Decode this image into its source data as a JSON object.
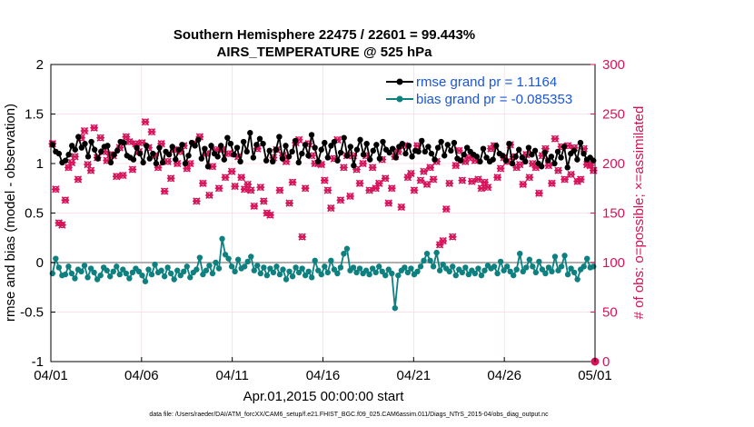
{
  "chart_data": {
    "type": "line",
    "title": "Southern Hemisphere 22475 / 22601 = 99.443%",
    "subtitle": "AIRS_TEMPERATURE @ 525 hPa",
    "xlabel": "Apr.01,2015 00:00:00 start",
    "ylabel_left": "rmse and bias (model - observation)",
    "ylabel_right": "# of obs: o=possible; ×=assimilated",
    "footnote": "data file: /Users/raeder/DAI/ATM_forcXX/CAM6_setup/f.e21.FHIST_BGC.f09_025.CAM6assim.011/Diags_NTrS_2015-04/obs_diag_output.nc",
    "ylim_left": [
      -1,
      2
    ],
    "ylim_right": [
      0,
      300
    ],
    "xlim": [
      0,
      30
    ],
    "y_ticks_left": [
      "-1",
      "-0.5",
      "0",
      "0.5",
      "1",
      "1.5",
      "2"
    ],
    "y_ticks_right": [
      "0",
      "50",
      "100",
      "150",
      "200",
      "250",
      "300"
    ],
    "x_ticks": [
      {
        "x": 0,
        "label": "04/01"
      },
      {
        "x": 5,
        "label": "04/06"
      },
      {
        "x": 10,
        "label": "04/11"
      },
      {
        "x": 15,
        "label": "04/16"
      },
      {
        "x": 20,
        "label": "04/21"
      },
      {
        "x": 25,
        "label": "04/26"
      },
      {
        "x": 30,
        "label": "05/01"
      }
    ],
    "grid": true,
    "legend_position": "top-right",
    "colors": {
      "rmse": "#000000",
      "bias": "#0e8080",
      "obs": "#d6135a",
      "zero_line": "#b0b0b0",
      "grid": "#ffd6e4",
      "legend_text": "#1a56db"
    },
    "series": [
      {
        "name": "rmse grand pr = 1.1164",
        "axis": "left",
        "marker": "circle",
        "values": [
          1.19,
          1.12,
          1.1,
          1.01,
          1.03,
          1.09,
          1.18,
          1.14,
          1.27,
          1.16,
          1.2,
          1.07,
          1.22,
          1.14,
          1.05,
          1.12,
          1.17,
          1.18,
          1.01,
          1.09,
          1.13,
          1.22,
          1.21,
          1.08,
          1.06,
          1.04,
          1.16,
          1.1,
          1.01,
          1.18,
          1.05,
          1.1,
          1.0,
          1.16,
          1.01,
          1.12,
          1.09,
          1.17,
          1.04,
          1.14,
          1.19,
          1.0,
          1.08,
          1.21,
          1.18,
          1.24,
          1.05,
          1.15,
          0.97,
          1.18,
          1.1,
          1.07,
          1.18,
          1.04,
          1.26,
          1.2,
          1.09,
          1.16,
          1.02,
          1.22,
          1.12,
          1.31,
          1.06,
          1.19,
          1.25,
          1.2,
          1.03,
          1.13,
          1.02,
          1.14,
          1.27,
          1.05,
          1.18,
          1.07,
          1.12,
          1.23,
          1.01,
          1.1,
          1.19,
          1.08,
          1.29,
          1.16,
          1.02,
          1.14,
          1.21,
          1.06,
          1.18,
          1.22,
          1.03,
          1.11,
          1.26,
          1.08,
          1.17,
          0.98,
          1.14,
          1.24,
          1.09,
          1.2,
          1.04,
          1.13,
          1.19,
          1.05,
          1.22,
          1.14,
          1.11,
          1.15,
          1.06,
          1.17,
          1.2,
          1.1,
          1.18,
          1.07,
          1.13,
          1.12,
          1.23,
          1.12,
          1.17,
          1.1,
          1.04,
          1.16,
          1.22,
          1.08,
          1.19,
          1.13,
          1.21,
          1.05,
          1.03,
          1.09,
          1.16,
          1.12,
          1.09,
          1.07,
          1.02,
          1.15,
          1.06,
          1.02,
          1.04,
          1.18,
          1.1,
          1.08,
          1.03,
          1.2,
          1.0,
          1.07,
          1.14,
          1.06,
          1.02,
          1.16,
          1.09,
          1.13,
          1.0,
          0.97,
          1.11,
          1.03,
          1.07,
          1.0,
          1.12,
          1.06,
          1.17,
          0.96,
          1.1,
          1.13,
          1.04,
          1.21,
          1.1,
          1.04,
          1.06,
          1.03
        ]
      },
      {
        "name": "bias grand pr = -0.085353",
        "axis": "left",
        "marker": "circle",
        "values": [
          -0.11,
          0.04,
          -0.05,
          -0.13,
          -0.12,
          -0.04,
          -0.11,
          -0.16,
          -0.07,
          -0.09,
          -0.03,
          -0.15,
          -0.06,
          -0.1,
          -0.17,
          -0.13,
          -0.05,
          -0.08,
          -0.14,
          -0.09,
          -0.04,
          -0.12,
          -0.07,
          -0.11,
          -0.16,
          -0.1,
          -0.06,
          -0.09,
          -0.13,
          -0.19,
          -0.07,
          -0.12,
          -0.02,
          -0.1,
          -0.08,
          -0.14,
          -0.05,
          -0.11,
          -0.17,
          -0.08,
          -0.13,
          -0.09,
          -0.04,
          -0.15,
          -0.1,
          -0.07,
          0.05,
          -0.12,
          -0.08,
          -0.03,
          -0.11,
          0.0,
          -0.06,
          0.24,
          0.08,
          0.04,
          -0.04,
          -0.09,
          0.03,
          -0.06,
          -0.04,
          0.01,
          0.06,
          -0.08,
          -0.03,
          -0.11,
          -0.05,
          -0.13,
          -0.06,
          -0.1,
          -0.04,
          -0.12,
          -0.07,
          -0.17,
          -0.09,
          -0.14,
          -0.05,
          -0.1,
          -0.06,
          -0.13,
          -0.09,
          -0.15,
          0.02,
          -0.08,
          -0.12,
          -0.04,
          -0.1,
          0.02,
          -0.07,
          -0.11,
          -0.05,
          0.09,
          0.14,
          -0.08,
          -0.05,
          -0.1,
          -0.06,
          -0.11,
          -0.08,
          -0.12,
          -0.06,
          -0.1,
          -0.04,
          -0.09,
          -0.13,
          -0.07,
          -0.11,
          -0.46,
          -0.13,
          -0.08,
          -0.05,
          -0.1,
          -0.06,
          -0.12,
          -0.09,
          -0.04,
          0.02,
          0.09,
          0.02,
          -0.04,
          0.1,
          -0.08,
          -0.02,
          -0.06,
          -0.09,
          -0.04,
          -0.13,
          -0.07,
          -0.1,
          -0.05,
          -0.12,
          -0.08,
          -0.11,
          -0.06,
          -0.13,
          -0.08,
          -0.03,
          -0.06,
          -0.04,
          -0.11,
          0.01,
          -0.08,
          -0.04,
          -0.09,
          -0.13,
          -0.07,
          0.09,
          -0.09,
          -0.05,
          0.03,
          -0.04,
          -0.1,
          0.01,
          -0.07,
          -0.11,
          -0.05,
          -0.09,
          0.06,
          -0.08,
          -0.04,
          0.07,
          -0.12,
          -0.06,
          -0.1,
          -0.17,
          -0.07,
          -0.04,
          0.04,
          -0.05,
          -0.04
        ]
      },
      {
        "name": "obs",
        "axis": "right",
        "marker": "cross",
        "values": [
          220,
          174,
          140,
          138,
          163,
          196,
          201,
          207,
          184,
          226,
          233,
          199,
          193,
          236,
          206,
          226,
          212,
          203,
          209,
          208,
          187,
          216,
          188,
          227,
          222,
          194,
          220,
          212,
          221,
          242,
          216,
          232,
          208,
          196,
          220,
          172,
          202,
          185,
          214,
          200,
          212,
          218,
          195,
          200,
          220,
          162,
          227,
          180,
          210,
          168,
          197,
          214,
          175,
          214,
          186,
          210,
          192,
          177,
          207,
          186,
          174,
          179,
          173,
          157,
          215,
          176,
          162,
          150,
          148,
          206,
          214,
          173,
          208,
          202,
          160,
          181,
          221,
          224,
          126,
          175,
          220,
          208,
          200,
          200,
          199,
          183,
          173,
          155,
          205,
          224,
          163,
          196,
          208,
          167,
          208,
          194,
          180,
          200,
          208,
          173,
          196,
          175,
          180,
          204,
          185,
          160,
          175,
          207,
          212,
          156,
          218,
          186,
          190,
          173,
          218,
          183,
          192,
          179,
          196,
          184,
          202,
          118,
          122,
          154,
          180,
          126,
          198,
          213,
          183,
          202,
          206,
          182,
          203,
          184,
          175,
          181,
          176,
          215,
          218,
          186,
          195,
          206,
          202,
          219,
          207,
          196,
          199,
          179,
          209,
          186,
          200,
          196,
          170,
          208,
          215,
          198,
          180,
          225,
          193,
          217,
          184,
          218,
          189,
          216,
          182,
          184,
          215,
          199,
          198,
          193
        ]
      }
    ]
  }
}
